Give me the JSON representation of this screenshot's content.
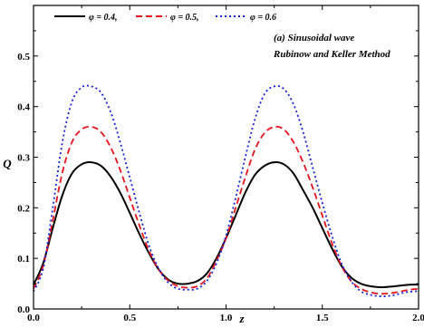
{
  "chart_data": {
    "type": "line",
    "xlabel": "z",
    "ylabel": "Q",
    "xlim": [
      0.0,
      2.0
    ],
    "ylim": [
      0.0,
      0.6
    ],
    "xticks": [
      0.0,
      0.5,
      1.0,
      1.5,
      2.0
    ],
    "xtick_labels": [
      "0.0",
      "0.5",
      "1.0",
      "1.5",
      "2.0"
    ],
    "yticks": [
      0.0,
      0.1,
      0.2,
      0.3,
      0.4,
      0.5
    ],
    "ytick_labels": [
      "0.0",
      "0.1",
      "0.2",
      "0.3",
      "0.4",
      "0.5"
    ],
    "legend_placement": "top-left",
    "annotations": [
      "(a) Sinusoidal wave",
      "Rubinow and Keller Method"
    ],
    "x": [
      0.0,
      0.05,
      0.1,
      0.15,
      0.2,
      0.25,
      0.3,
      0.35,
      0.4,
      0.45,
      0.5,
      0.55,
      0.6,
      0.65,
      0.7,
      0.75,
      0.8,
      0.85,
      0.9,
      0.95,
      1.0,
      1.05,
      1.1,
      1.15,
      1.2,
      1.25,
      1.3,
      1.35,
      1.4,
      1.45,
      1.5,
      1.55,
      1.6,
      1.65,
      1.7,
      1.75,
      1.8,
      1.85,
      1.9,
      1.95,
      2.0
    ],
    "series": [
      {
        "name": "φ = 0.4,",
        "color": "#000000",
        "dash": "solid",
        "values": [
          0.048,
          0.09,
          0.16,
          0.225,
          0.268,
          0.286,
          0.29,
          0.283,
          0.262,
          0.23,
          0.19,
          0.148,
          0.11,
          0.078,
          0.058,
          0.05,
          0.05,
          0.055,
          0.07,
          0.1,
          0.14,
          0.185,
          0.23,
          0.265,
          0.283,
          0.29,
          0.286,
          0.268,
          0.235,
          0.2,
          0.16,
          0.12,
          0.085,
          0.062,
          0.05,
          0.045,
          0.043,
          0.044,
          0.046,
          0.048,
          0.048
        ]
      },
      {
        "name": "φ = 0.5,",
        "color": "#e8141c",
        "dash": "dashed",
        "values": [
          0.04,
          0.085,
          0.175,
          0.27,
          0.33,
          0.355,
          0.36,
          0.35,
          0.32,
          0.275,
          0.22,
          0.165,
          0.115,
          0.078,
          0.056,
          0.045,
          0.042,
          0.045,
          0.06,
          0.095,
          0.14,
          0.2,
          0.26,
          0.315,
          0.348,
          0.36,
          0.355,
          0.33,
          0.29,
          0.24,
          0.185,
          0.13,
          0.085,
          0.055,
          0.04,
          0.033,
          0.03,
          0.031,
          0.034,
          0.038,
          0.04
        ]
      },
      {
        "name": "φ = 0.6",
        "color": "#1420d8",
        "dash": "dotted",
        "values": [
          0.035,
          0.08,
          0.2,
          0.33,
          0.41,
          0.438,
          0.44,
          0.428,
          0.39,
          0.33,
          0.26,
          0.19,
          0.125,
          0.08,
          0.052,
          0.04,
          0.038,
          0.04,
          0.055,
          0.09,
          0.145,
          0.22,
          0.3,
          0.375,
          0.425,
          0.44,
          0.435,
          0.405,
          0.35,
          0.28,
          0.21,
          0.145,
          0.09,
          0.055,
          0.035,
          0.028,
          0.025,
          0.026,
          0.03,
          0.034,
          0.035
        ]
      }
    ]
  }
}
